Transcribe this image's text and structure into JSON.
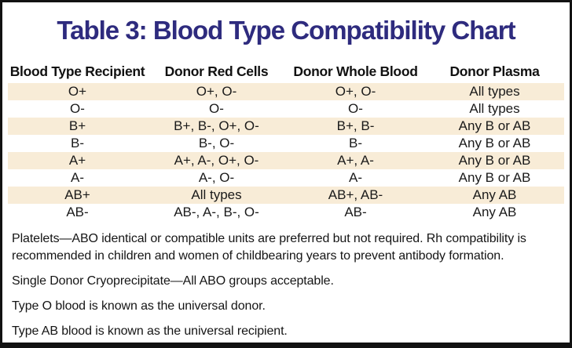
{
  "title": "Table 3: Blood Type Compatibility Chart",
  "table": {
    "columns": [
      "Blood Type Recipient",
      "Donor Red Cells",
      "Donor Whole Blood",
      "Donor Plasma"
    ],
    "rows": [
      [
        "O+",
        "O+, O-",
        "O+, O-",
        "All types"
      ],
      [
        "O-",
        "O-",
        "O-",
        "All types"
      ],
      [
        "B+",
        "B+, B-, O+, O-",
        "B+, B-",
        "Any B or AB"
      ],
      [
        "B-",
        "B-, O-",
        "B-",
        "Any B or AB"
      ],
      [
        "A+",
        "A+, A-, O+, O-",
        "A+, A-",
        "Any B or AB"
      ],
      [
        "A-",
        "A-, O-",
        "A-",
        "Any B or AB"
      ],
      [
        "AB+",
        "All types",
        "AB+, AB-",
        "Any AB"
      ],
      [
        "AB-",
        "AB-, A-, B-, O-",
        "AB-",
        "Any AB"
      ]
    ]
  },
  "notes": [
    "Platelets—ABO identical or compatible units are preferred but not required. Rh compatibility is recommended in children and women of childbearing years to prevent antibody formation.",
    "Single Donor Cryoprecipitate—All ABO groups acceptable.",
    "Type O blood is known as the universal donor.",
    "Type AB blood is known as the universal recipient."
  ],
  "colors": {
    "title_indigo": "#2E2B7E",
    "row_stripe_cream": "#F8ECD7",
    "border_black": "#121212",
    "text_black": "#1A1A1A"
  }
}
